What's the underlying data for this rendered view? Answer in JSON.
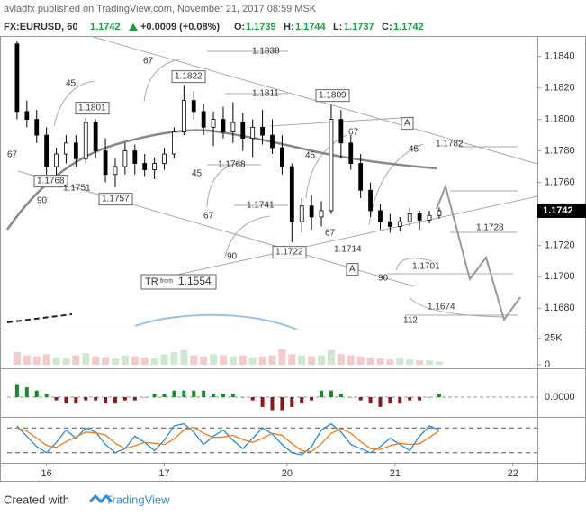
{
  "header": {
    "byline": "avladfx published on TradingView.com, November 21, 2017 08:59 MSK",
    "symbol": "FX:EURUSD, 60",
    "last": 1.1742,
    "change": "+0.0009 (+0.08%)",
    "o_label": "O:",
    "o": 1.1739,
    "h_label": "H:",
    "h": 1.1744,
    "l_label": "L:",
    "l": 1.1737,
    "c_label": "C:",
    "c": 1.1742
  },
  "chart_data": {
    "type": "candlestick",
    "x": [
      -6,
      -4,
      -2,
      0,
      2,
      4,
      6,
      8,
      10,
      12,
      14,
      16,
      18,
      20,
      22,
      24,
      26,
      28,
      30,
      32,
      34,
      36,
      38,
      40,
      42,
      44,
      46,
      48,
      50,
      52,
      54,
      56,
      58,
      60,
      62,
      64,
      66,
      68,
      70,
      72,
      74,
      76,
      78,
      80
    ],
    "open": [
      1.1848,
      1.1805,
      1.18,
      1.179,
      1.177,
      1.1778,
      1.1785,
      1.1775,
      1.1798,
      1.178,
      1.1765,
      1.177,
      1.178,
      1.1772,
      1.1768,
      1.1772,
      1.1778,
      1.1792,
      1.1812,
      1.1805,
      1.1795,
      1.18,
      1.1792,
      1.1798,
      1.1788,
      1.1795,
      1.179,
      1.1782,
      1.177,
      1.1735,
      1.1745,
      1.1738,
      1.1742,
      1.18,
      1.1785,
      1.1772,
      1.1755,
      1.1742,
      1.1735,
      1.1732,
      1.1735,
      1.174,
      1.1736,
      1.1739
    ],
    "high": [
      1.185,
      1.1812,
      1.1806,
      1.1795,
      1.1782,
      1.179,
      1.179,
      1.1801,
      1.18,
      1.1788,
      1.1775,
      1.1785,
      1.1784,
      1.1778,
      1.1776,
      1.1782,
      1.1795,
      1.1822,
      1.1818,
      1.181,
      1.1805,
      1.1808,
      1.1811,
      1.1804,
      1.18,
      1.1806,
      1.18,
      1.179,
      1.1772,
      1.175,
      1.1752,
      1.1748,
      1.1809,
      1.1806,
      1.179,
      1.1778,
      1.176,
      1.1746,
      1.174,
      1.1738,
      1.1744,
      1.1742,
      1.1742,
      1.1744
    ],
    "low": [
      1.18,
      1.1795,
      1.1785,
      1.1765,
      1.176,
      1.1772,
      1.177,
      1.1772,
      1.1775,
      1.176,
      1.1757,
      1.1765,
      1.1765,
      1.1764,
      1.1762,
      1.1768,
      1.1775,
      1.179,
      1.18,
      1.179,
      1.1783,
      1.1788,
      1.1785,
      1.178,
      1.1776,
      1.1784,
      1.1778,
      1.1765,
      1.1722,
      1.1728,
      1.173,
      1.1732,
      1.174,
      1.1775,
      1.1768,
      1.175,
      1.1738,
      1.173,
      1.1728,
      1.1729,
      1.1732,
      1.173,
      1.1734,
      1.1737
    ],
    "close": [
      1.1805,
      1.18,
      1.179,
      1.177,
      1.1778,
      1.1785,
      1.1775,
      1.1798,
      1.178,
      1.1765,
      1.177,
      1.178,
      1.1772,
      1.1768,
      1.1772,
      1.1778,
      1.1792,
      1.1812,
      1.1805,
      1.1795,
      1.18,
      1.1792,
      1.1798,
      1.1788,
      1.1795,
      1.179,
      1.1782,
      1.177,
      1.1735,
      1.1745,
      1.1738,
      1.1742,
      1.18,
      1.1785,
      1.1772,
      1.1755,
      1.1742,
      1.1735,
      1.1732,
      1.1735,
      1.174,
      1.1736,
      1.1739,
      1.1742
    ],
    "xlim": [
      -8,
      100
    ],
    "xticks": [
      {
        "value": 0,
        "label": "16"
      },
      {
        "value": 24,
        "label": "17"
      },
      {
        "value": 49,
        "label": "20"
      },
      {
        "value": 71,
        "label": "21"
      },
      {
        "value": 95,
        "label": "22"
      }
    ],
    "ylim": [
      1.1667,
      1.1853
    ],
    "yticks": [
      {
        "value": 1.184,
        "label": "1.1840"
      },
      {
        "value": 1.182,
        "label": "1.1820"
      },
      {
        "value": 1.18,
        "label": "1.1800"
      },
      {
        "value": 1.178,
        "label": "1.1780"
      },
      {
        "value": 1.176,
        "label": "1.1760"
      },
      {
        "value": 1.172,
        "label": "1.1720"
      },
      {
        "value": 1.17,
        "label": "1.1700"
      },
      {
        "value": 1.168,
        "label": "1.1680"
      }
    ],
    "last_price": 1.1742,
    "annotations": [
      {
        "text": "1.1838",
        "boxed": false
      },
      {
        "text": "1.1822",
        "boxed": true
      },
      {
        "text": "1.1811",
        "boxed": false
      },
      {
        "text": "1.1809",
        "boxed": true
      },
      {
        "text": "1.1801",
        "boxed": true
      },
      {
        "text": "1.1782",
        "boxed": false
      },
      {
        "text": "1.1768",
        "boxed": false
      },
      {
        "text": "1.1768",
        "boxed": true
      },
      {
        "text": "1.1751",
        "boxed": false
      },
      {
        "text": "1.1757",
        "boxed": true
      },
      {
        "text": "1.1741",
        "boxed": false
      },
      {
        "text": "1.1728",
        "boxed": false
      },
      {
        "text": "1.1722",
        "boxed": true
      },
      {
        "text": "1.1714",
        "boxed": false
      },
      {
        "text": "1.1701",
        "boxed": false
      },
      {
        "text": "1.1674",
        "boxed": false
      },
      {
        "text": "67",
        "boxed": false
      },
      {
        "text": "45",
        "boxed": false
      },
      {
        "text": "67",
        "boxed": false
      },
      {
        "text": "90",
        "boxed": false
      },
      {
        "text": "45",
        "boxed": false
      },
      {
        "text": "67",
        "boxed": false
      },
      {
        "text": "90",
        "boxed": false
      },
      {
        "text": "45",
        "boxed": false
      },
      {
        "text": "67",
        "boxed": false
      },
      {
        "text": "45",
        "boxed": false
      },
      {
        "text": "67",
        "boxed": false
      },
      {
        "text": "90",
        "boxed": false
      },
      {
        "text": "112",
        "boxed": false
      },
      {
        "text": "A",
        "boxed": true
      },
      {
        "text": "A",
        "boxed": true
      }
    ],
    "tr_box": {
      "tag": "TR",
      "from": "from",
      "price": "1.1554"
    },
    "volume": [
      12000,
      9000,
      8000,
      10000,
      7000,
      6000,
      9000,
      11000,
      8000,
      7000,
      6000,
      9000,
      8000,
      7000,
      6000,
      10000,
      12000,
      14000,
      9000,
      8000,
      10000,
      9000,
      8000,
      9000,
      7000,
      8000,
      9000,
      15000,
      10000,
      9000,
      8000,
      9000,
      14000,
      10000,
      9000,
      8000,
      7000,
      6000,
      5000,
      6000,
      5000,
      4000,
      4000,
      3000
    ],
    "volume_ylim": [
      0,
      30000
    ],
    "volume_ticks": [
      {
        "value": 25000,
        "label": "25K"
      },
      0
    ],
    "macd_hist": [
      0.0004,
      0.0003,
      0.0002,
      0.0001,
      -0.0001,
      -0.0002,
      -0.0002,
      -0.0001,
      -0.0001,
      -0.0002,
      -0.0002,
      -0.0001,
      -0.0001,
      0,
      0.0001,
      0.0001,
      0.0002,
      0.0002,
      0.0002,
      0.0002,
      0.0001,
      0.0001,
      0.0001,
      0,
      -0.0001,
      -0.0003,
      -0.0004,
      -0.0004,
      -0.0003,
      -0.0002,
      -0.0001,
      0.0002,
      0.0002,
      0.0001,
      0,
      -0.0001,
      -0.0002,
      -0.0003,
      -0.0002,
      -0.0002,
      -0.0001,
      -0.0001,
      0,
      0.0001
    ],
    "macd_ylim": [
      -0.0008,
      0.0008
    ],
    "macd_ticks": [
      {
        "value": 0,
        "label": "0.0000"
      }
    ],
    "stoch_k": [
      85,
      60,
      35,
      20,
      45,
      75,
      55,
      80,
      70,
      40,
      20,
      30,
      60,
      45,
      25,
      50,
      85,
      90,
      70,
      40,
      60,
      75,
      50,
      30,
      55,
      80,
      65,
      40,
      20,
      15,
      35,
      75,
      90,
      70,
      40,
      30,
      20,
      35,
      55,
      40,
      25,
      60,
      85,
      75
    ],
    "stoch_d": [
      80,
      72,
      55,
      38,
      33,
      47,
      58,
      70,
      68,
      63,
      43,
      30,
      37,
      45,
      43,
      40,
      53,
      75,
      82,
      67,
      57,
      58,
      62,
      52,
      45,
      55,
      67,
      62,
      42,
      25,
      23,
      42,
      67,
      78,
      67,
      47,
      30,
      28,
      37,
      43,
      40,
      42,
      57,
      73
    ],
    "stoch_ylim": [
      0,
      100
    ],
    "stoch_levels": [
      80,
      20
    ]
  },
  "footer": {
    "created": "Created with",
    "brand": "TradingView"
  }
}
